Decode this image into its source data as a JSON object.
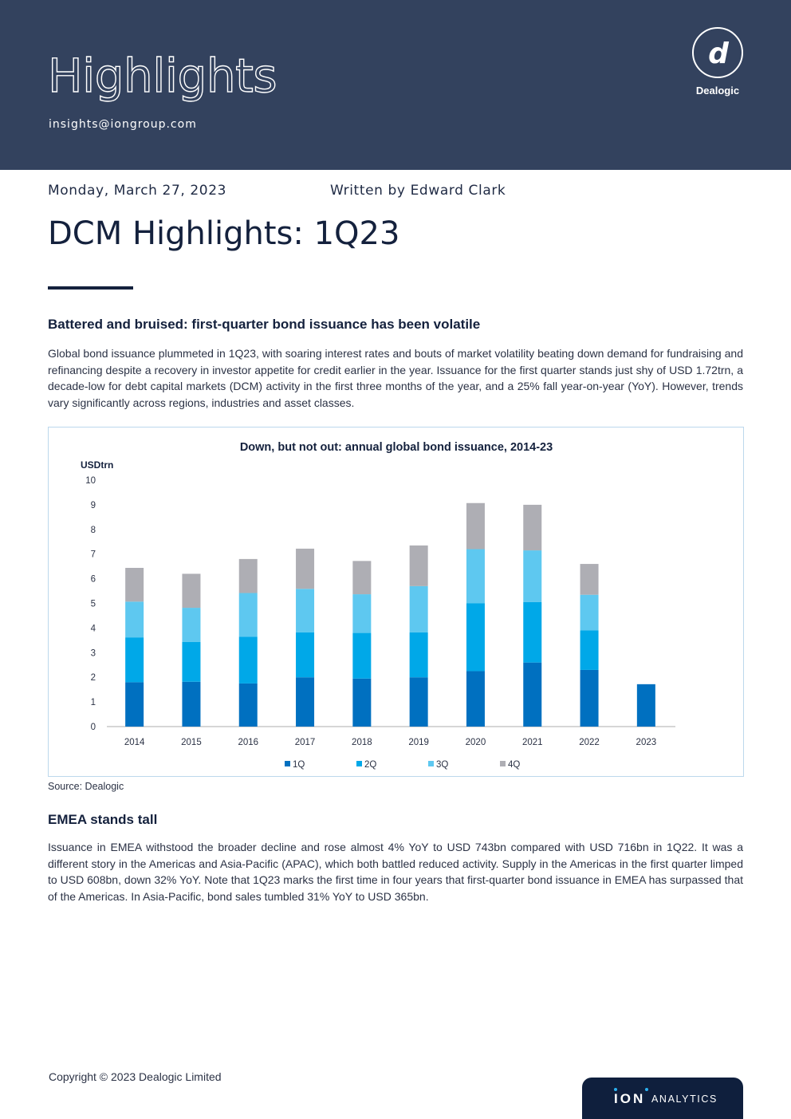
{
  "header": {
    "title": "Highlights",
    "email": "insights@iongroup.com",
    "logo_text": "Dealogic",
    "logo_letter": "d"
  },
  "meta": {
    "date": "Monday, March 27, 2023",
    "author": "Written by Edward Clark"
  },
  "document": {
    "title": "DCM Highlights: 1Q23"
  },
  "sections": [
    {
      "heading": "Battered and bruised: first-quarter bond issuance has been volatile",
      "body": "Global bond issuance plummeted in 1Q23, with soaring interest rates and bouts of market volatility beating down demand for fundraising and refinancing despite a recovery in investor appetite for credit earlier in the year. Issuance for the first quarter stands just shy of USD 1.72trn, a decade-low for debt capital markets (DCM) activity in the first three months of the year, and a 25% fall year-on-year (YoY). However, trends vary significantly across regions, industries and asset classes."
    },
    {
      "heading": "EMEA stands tall",
      "body": "Issuance in EMEA withstood the broader decline and rose almost 4% YoY to USD 743bn compared with USD 716bn in 1Q22. It was a different story in the Americas and Asia-Pacific (APAC), which both battled reduced activity. Supply in the Americas in the first quarter limped to USD 608bn, down 32% YoY. Note that 1Q23 marks the first time in four years that first-quarter bond issuance in EMEA has surpassed that of the Americas. In Asia-Pacific, bond sales tumbled 31% YoY to USD 365bn."
    }
  ],
  "chart_data": {
    "type": "bar",
    "stacked": true,
    "title": "Down, but not out: annual global bond issuance, 2014-23",
    "ylabel": "USDtrn",
    "xlabel": "",
    "ylim": [
      0,
      10
    ],
    "yticks": [
      "0",
      "1",
      "2",
      "3",
      "4",
      "5",
      "6",
      "7",
      "8",
      "9",
      "10"
    ],
    "grid": false,
    "legend_position": "bottom",
    "categories": [
      "2014",
      "2015",
      "2016",
      "2017",
      "2018",
      "2019",
      "2020",
      "2021",
      "2022",
      "2023"
    ],
    "series": [
      {
        "name": "1Q",
        "color": "#0070c0",
        "values": [
          1.8,
          1.82,
          1.75,
          2.0,
          1.95,
          2.0,
          2.25,
          2.6,
          2.3,
          1.72
        ]
      },
      {
        "name": "2Q",
        "color": "#00a8e8",
        "values": [
          1.82,
          1.62,
          1.9,
          1.82,
          1.85,
          1.82,
          2.75,
          2.45,
          1.6,
          0
        ]
      },
      {
        "name": "3Q",
        "color": "#5ec8f0",
        "values": [
          1.45,
          1.38,
          1.77,
          1.77,
          1.57,
          1.88,
          2.2,
          2.1,
          1.45,
          0
        ]
      },
      {
        "name": "4Q",
        "color": "#aeaeb4",
        "values": [
          1.37,
          1.38,
          1.38,
          1.63,
          1.35,
          1.65,
          1.87,
          1.85,
          1.25,
          0
        ]
      }
    ],
    "source": "Source: Dealogic"
  },
  "footer": {
    "copyright": "Copyright © 2023 Dealogic Limited",
    "badge_word": "ION",
    "badge_analytics": "ANALYTICS"
  }
}
